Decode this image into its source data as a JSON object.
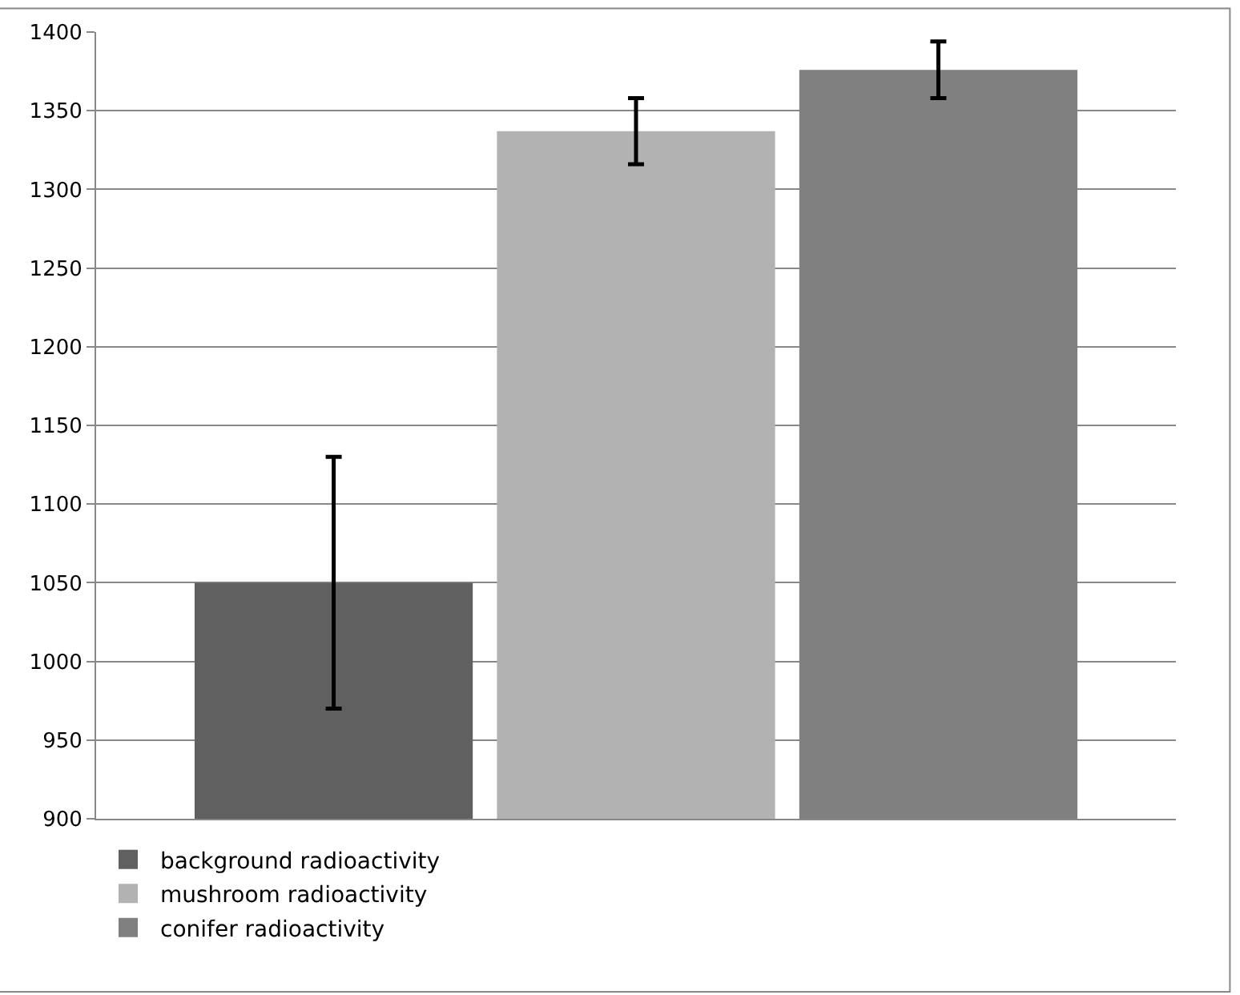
{
  "chart_data": {
    "type": "bar",
    "categories": [
      null
    ],
    "series": [
      {
        "name": "background radioactivity",
        "color": "#606060",
        "values": [
          1050
        ],
        "errors": [
          80
        ]
      },
      {
        "name": "mushroom radioactivity",
        "color": "#b2b2b2",
        "values": [
          1337
        ],
        "errors": [
          21
        ]
      },
      {
        "name": "conifer radioactivity",
        "color": "#808080",
        "values": [
          1376
        ],
        "errors": [
          18
        ]
      }
    ],
    "ylim": [
      900,
      1400
    ],
    "yticks": [
      900,
      950,
      1000,
      1050,
      1100,
      1150,
      1200,
      1250,
      1300,
      1350,
      1400
    ],
    "grid": "y",
    "legend": "bottom"
  }
}
